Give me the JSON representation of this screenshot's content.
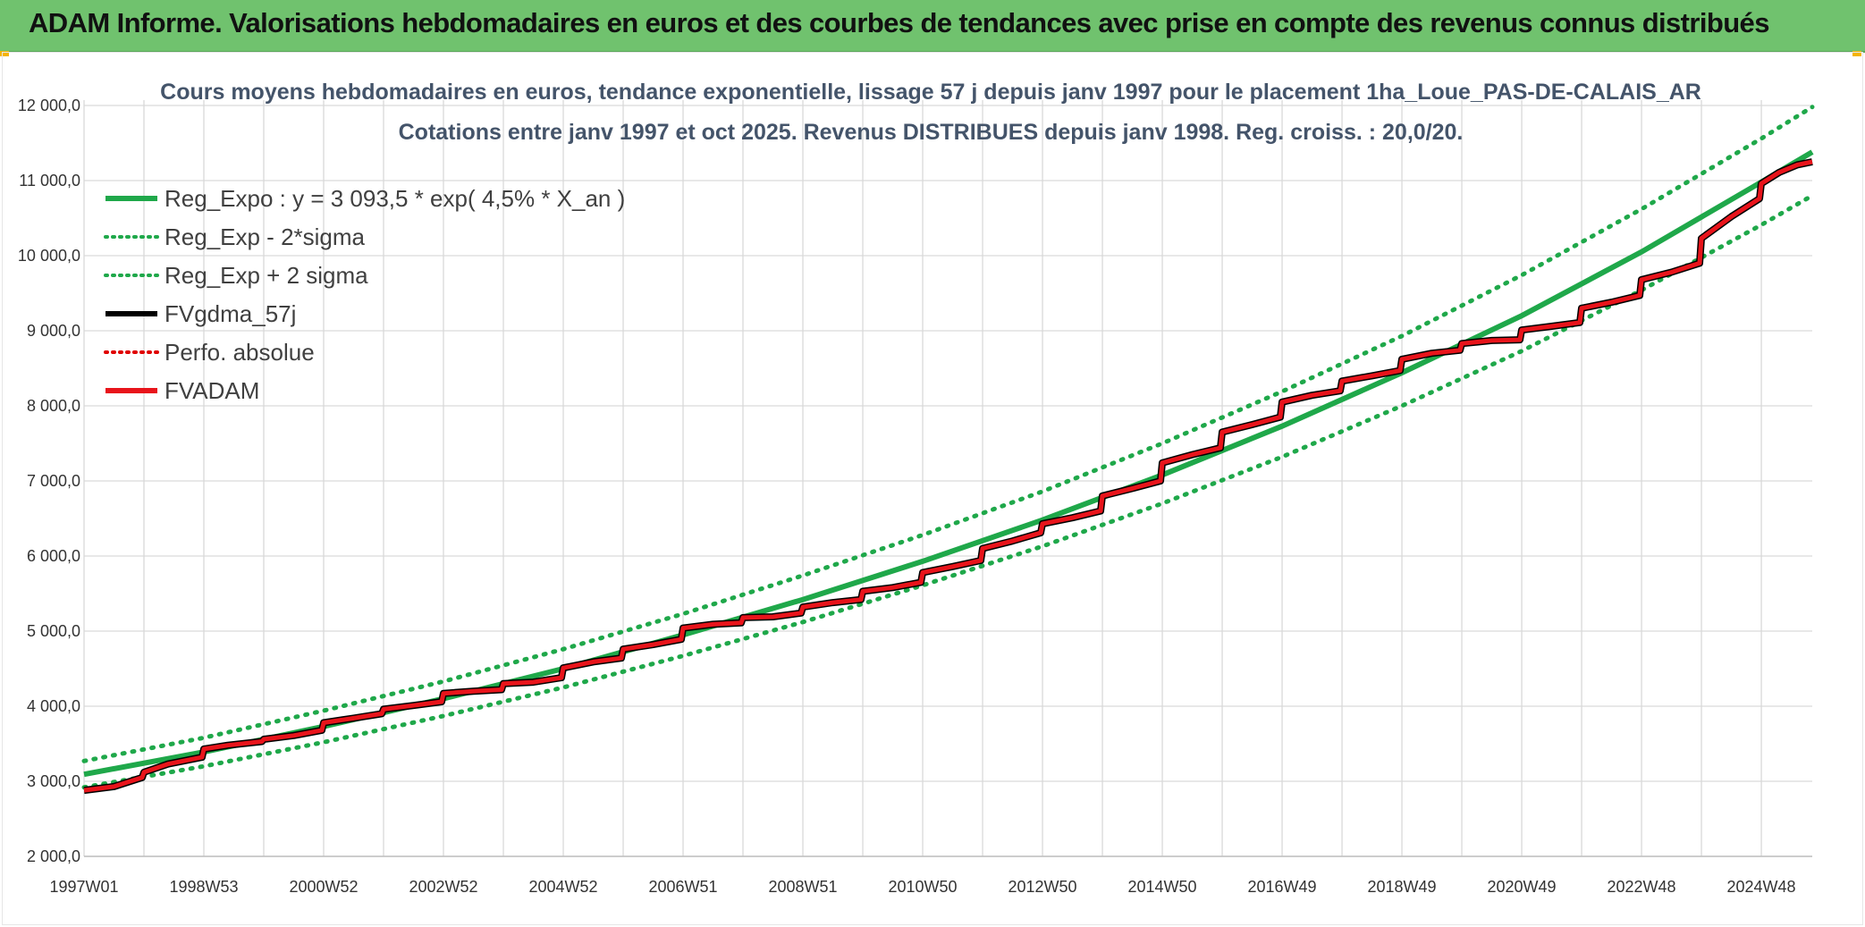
{
  "header": {
    "title": "ADAM Informe. Valorisations hebdomadaires en euros et des courbes de tendances avec prise en compte des revenus connus distribués",
    "background": "#70c26e"
  },
  "chart_data": {
    "type": "line",
    "title": "Cours moyens hebdomadaires en euros, tendance exponentielle, lissage 57 j depuis janv 1997 pour le placement 1ha_Loue_PAS-DE-CALAIS_AR",
    "subtitle": "Cotations entre janv 1997 et oct 2025. Revenus DISTRIBUES depuis janv 1998. Reg. croiss. : 20,0/20.",
    "xlabel": "",
    "ylabel": "",
    "x_range": [
      1997.0,
      2025.85
    ],
    "ylim": [
      2000,
      12000
    ],
    "y_ticks": [
      2000,
      3000,
      4000,
      5000,
      6000,
      7000,
      8000,
      9000,
      10000,
      11000,
      12000
    ],
    "y_tick_labels": [
      "2 000,0",
      "3 000,0",
      "4 000,0",
      "5 000,0",
      "6 000,0",
      "7 000,0",
      "8 000,0",
      "9 000,0",
      "10 000,0",
      "11 000,0",
      "12 000,0"
    ],
    "x_tick_labels": [
      "1997W01",
      "1998W53",
      "2000W52",
      "2002W52",
      "2004W52",
      "2006W51",
      "2008W51",
      "2010W50",
      "2012W50",
      "2014W50",
      "2016W49",
      "2018W49",
      "2020W49",
      "2022W48",
      "2024W48"
    ],
    "x_tick_positions": [
      1997.0,
      1999.0,
      2001.0,
      2003.0,
      2005.0,
      2007.0,
      2009.0,
      2011.0,
      2013.0,
      2015.0,
      2017.0,
      2019.0,
      2021.0,
      2023.0,
      2025.0
    ],
    "grid": true,
    "legend_position": "top-left",
    "legend": [
      {
        "label": "Reg_Expo : y = 3 093,5 * exp( 4,5% *  X_an )",
        "color": "#1fa84a",
        "style": "solid"
      },
      {
        "label": "Reg_Exp - 2*sigma",
        "color": "#1fa84a",
        "style": "dotted"
      },
      {
        "label": "Reg_Exp + 2 sigma",
        "color": "#1fa84a",
        "style": "dotted"
      },
      {
        "label": "FVgdma_57j",
        "color": "#000000",
        "style": "solid"
      },
      {
        "label": "Perfo. absolue",
        "color": "#e00000",
        "style": "dotted"
      },
      {
        "label": "FVADAM",
        "color": "#e8141b",
        "style": "solid"
      }
    ],
    "series": [
      {
        "name": "Reg_Expo",
        "color": "#1fa84a",
        "x": [
          1997.0,
          1999.0,
          2001.0,
          2003.0,
          2005.0,
          2007.0,
          2009.0,
          2011.0,
          2013.0,
          2015.0,
          2017.0,
          2019.0,
          2021.0,
          2023.0,
          2025.0,
          2025.85
        ],
        "values": [
          3093,
          3390,
          3730,
          4100,
          4500,
          4950,
          5420,
          5930,
          6480,
          7080,
          7730,
          8440,
          9200,
          10050,
          10980,
          11380
        ]
      },
      {
        "name": "Reg_Exp - 2*sigma",
        "color": "#1fa84a",
        "x": [
          1997.0,
          1999.0,
          2001.0,
          2003.0,
          2005.0,
          2007.0,
          2009.0,
          2011.0,
          2013.0,
          2015.0,
          2017.0,
          2019.0,
          2021.0,
          2023.0,
          2025.0,
          2025.85
        ],
        "values": [
          2920,
          3200,
          3520,
          3870,
          4250,
          4670,
          5120,
          5610,
          6130,
          6700,
          7320,
          8000,
          8730,
          9540,
          10410,
          10800
        ]
      },
      {
        "name": "Reg_Exp + 2 sigma",
        "color": "#1fa84a",
        "x": [
          1997.0,
          1999.0,
          2001.0,
          2003.0,
          2005.0,
          2007.0,
          2009.0,
          2011.0,
          2013.0,
          2015.0,
          2017.0,
          2019.0,
          2021.0,
          2023.0,
          2025.0,
          2025.85
        ],
        "values": [
          3270,
          3580,
          3940,
          4330,
          4760,
          5230,
          5740,
          6280,
          6860,
          7500,
          8190,
          8930,
          9740,
          10620,
          11560,
          11980
        ]
      },
      {
        "name": "FVADAM",
        "color": "#e8141b",
        "x": [
          1997.0,
          1997.5,
          1997.97,
          1998.0,
          1998.4,
          1998.97,
          1999.0,
          1999.4,
          1999.97,
          2000.0,
          2000.5,
          2000.97,
          2001.0,
          2001.5,
          2001.97,
          2002.0,
          2002.5,
          2002.97,
          2003.0,
          2003.5,
          2003.97,
          2004.0,
          2004.5,
          2004.97,
          2005.0,
          2005.5,
          2005.97,
          2006.0,
          2006.5,
          2006.97,
          2007.0,
          2007.5,
          2007.97,
          2008.0,
          2008.5,
          2008.97,
          2009.0,
          2009.5,
          2009.97,
          2010.0,
          2010.5,
          2010.97,
          2011.0,
          2011.5,
          2011.97,
          2012.0,
          2012.5,
          2012.97,
          2013.0,
          2013.5,
          2013.97,
          2014.0,
          2014.5,
          2014.97,
          2015.0,
          2015.5,
          2015.97,
          2016.0,
          2016.5,
          2016.97,
          2017.0,
          2017.5,
          2017.97,
          2018.0,
          2018.5,
          2018.97,
          2019.0,
          2019.5,
          2019.97,
          2020.0,
          2020.5,
          2020.97,
          2021.0,
          2021.5,
          2021.97,
          2022.0,
          2022.5,
          2022.97,
          2023.0,
          2023.5,
          2023.97,
          2024.0,
          2024.5,
          2024.97,
          2025.0,
          2025.3,
          2025.6,
          2025.85
        ],
        "values": [
          2880,
          2930,
          3050,
          3120,
          3230,
          3320,
          3430,
          3480,
          3530,
          3560,
          3610,
          3680,
          3780,
          3840,
          3900,
          3960,
          4010,
          4060,
          4170,
          4200,
          4220,
          4300,
          4320,
          4380,
          4510,
          4590,
          4640,
          4760,
          4820,
          4890,
          5040,
          5090,
          5110,
          5180,
          5190,
          5240,
          5320,
          5380,
          5420,
          5530,
          5580,
          5650,
          5780,
          5860,
          5940,
          6100,
          6200,
          6310,
          6430,
          6510,
          6600,
          6800,
          6900,
          7000,
          7240,
          7350,
          7440,
          7650,
          7750,
          7850,
          8050,
          8140,
          8200,
          8330,
          8400,
          8470,
          8620,
          8700,
          8740,
          8830,
          8870,
          8880,
          9010,
          9060,
          9110,
          9300,
          9380,
          9470,
          9680,
          9780,
          9900,
          10230,
          10520,
          10760,
          10960,
          11110,
          11210,
          11250
        ]
      }
    ]
  }
}
